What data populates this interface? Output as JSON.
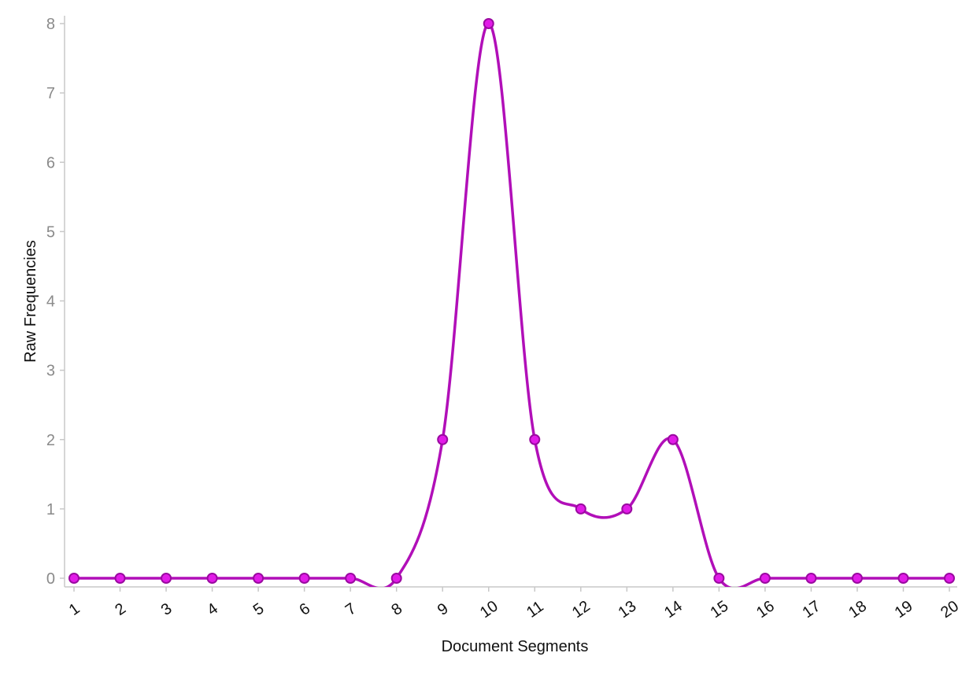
{
  "chart_data": {
    "type": "line",
    "title": "",
    "xlabel": "Document Segments",
    "ylabel": "Raw Frequencies",
    "categories": [
      "1",
      "2",
      "3",
      "4",
      "5",
      "6",
      "7",
      "8",
      "9",
      "10",
      "11",
      "12",
      "13",
      "14",
      "15",
      "16",
      "17",
      "18",
      "19",
      "20"
    ],
    "series": [
      {
        "values": [
          0,
          0,
          0,
          0,
          0,
          0,
          0,
          0,
          2,
          8,
          2,
          1,
          1,
          2,
          0,
          0,
          0,
          0,
          0,
          0
        ]
      }
    ],
    "ylim": [
      0,
      8
    ],
    "yticks": [
      "0",
      "1",
      "2",
      "3",
      "4",
      "5",
      "6",
      "7",
      "8"
    ],
    "grid": false,
    "smooth": true,
    "colors": {
      "line": "#b10fb8",
      "marker_fill": "#e21be8",
      "marker_stroke": "#9a0aa0",
      "axis": "#c8c8c8"
    }
  }
}
